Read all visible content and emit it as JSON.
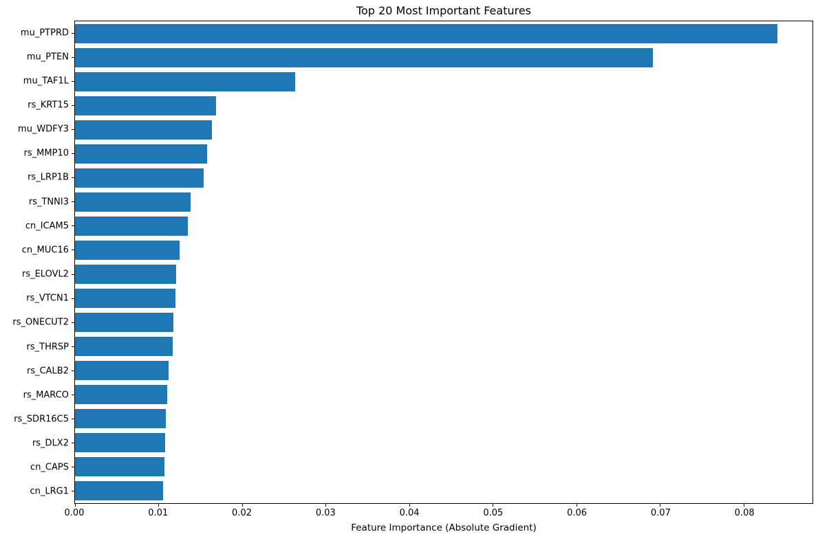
{
  "chart_data": {
    "type": "bar",
    "orientation": "horizontal",
    "title": "Top 20 Most Important Features",
    "xlabel": "Feature Importance (Absolute Gradient)",
    "ylabel": "",
    "bar_color": "#1f77b4",
    "grid": false,
    "legend": false,
    "categories": [
      "mu_PTPRD",
      "mu_PTEN",
      "mu_TAF1L",
      "rs_KRT15",
      "mu_WDFY3",
      "rs_MMP10",
      "rs_LRP1B",
      "rs_TNNI3",
      "cn_ICAM5",
      "cn_MUC16",
      "rs_ELOVL2",
      "rs_VTCN1",
      "rs_ONECUT2",
      "rs_THRSP",
      "rs_CALB2",
      "rs_MARCO",
      "rs_SDR16C5",
      "rs_DLX2",
      "cn_CAPS",
      "cn_LRG1"
    ],
    "values": [
      0.084,
      0.0691,
      0.0263,
      0.0169,
      0.0164,
      0.0158,
      0.0154,
      0.0138,
      0.0135,
      0.0125,
      0.0121,
      0.012,
      0.0118,
      0.0117,
      0.0112,
      0.011,
      0.0109,
      0.0108,
      0.0107,
      0.0105
    ],
    "xlim": [
      0,
      0.0882
    ],
    "xtick_values": [
      0.0,
      0.01,
      0.02,
      0.03,
      0.04,
      0.05,
      0.06,
      0.07,
      0.08
    ],
    "xtick_labels": [
      "0.00",
      "0.01",
      "0.02",
      "0.03",
      "0.04",
      "0.05",
      "0.06",
      "0.07",
      "0.08"
    ]
  }
}
